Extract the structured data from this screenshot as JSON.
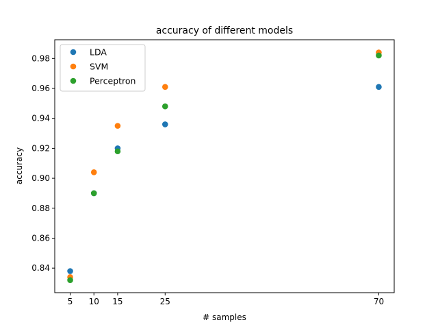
{
  "chart_data": {
    "type": "scatter",
    "title": "accuracy of different models",
    "xlabel": "# samples",
    "ylabel": "accuracy",
    "x": [
      5,
      10,
      15,
      25,
      70
    ],
    "xticks": [
      5,
      10,
      15,
      25,
      70
    ],
    "xtick_labels": [
      "5",
      "10",
      "15",
      "25",
      "70"
    ],
    "xlim": [
      1.75,
      73.25
    ],
    "yticks": [
      0.84,
      0.86,
      0.88,
      0.9,
      0.92,
      0.94,
      0.96,
      0.98
    ],
    "ytick_labels": [
      "0.84",
      "0.86",
      "0.88",
      "0.90",
      "0.92",
      "0.94",
      "0.96",
      "0.98"
    ],
    "ylim": [
      0.8236,
      0.9925
    ],
    "grid": false,
    "legend_position": "top-left",
    "series": [
      {
        "name": "LDA",
        "color": "#1f77b4",
        "values": [
          0.838,
          0.89,
          0.92,
          0.936,
          0.961
        ]
      },
      {
        "name": "SVM",
        "color": "#ff7f0e",
        "values": [
          0.834,
          0.904,
          0.935,
          0.961,
          0.984
        ]
      },
      {
        "name": "Perceptron",
        "color": "#2ca02c",
        "values": [
          0.832,
          0.89,
          0.918,
          0.948,
          0.982
        ]
      }
    ]
  }
}
